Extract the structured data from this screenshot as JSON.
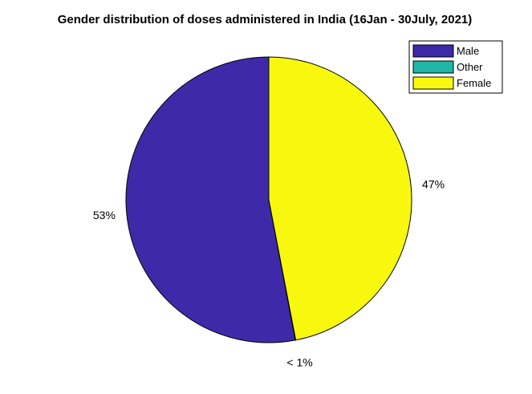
{
  "chart_data": {
    "type": "pie",
    "title": "Gender distribution of doses administered in India (16Jan - 30July, 2021)",
    "slices": [
      {
        "name": "Male",
        "value": 53,
        "label": "53%",
        "color": "#3e2aa8"
      },
      {
        "name": "Other",
        "value": 0.04,
        "label": "< 1%",
        "color": "#1fb6a7"
      },
      {
        "name": "Female",
        "value": 47,
        "label": "47%",
        "color": "#f8f80e"
      }
    ],
    "legend": {
      "position": "top-right",
      "entries": [
        "Male",
        "Other",
        "Female"
      ]
    }
  }
}
